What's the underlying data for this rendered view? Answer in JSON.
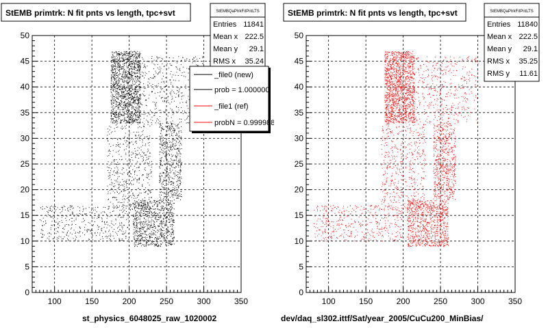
{
  "colors": {
    "left_points": "#000000",
    "right_points": "#ff0000",
    "frame": "#000000",
    "grid": "#000000"
  },
  "chart_data": [
    {
      "type": "scatter",
      "title": "StEMB primtrk: N fit pnts vs length, tpc+svt",
      "xlabel": "st_physics_6048025_raw_1020002",
      "ylabel": "",
      "xlim": [
        70,
        350
      ],
      "ylim": [
        0,
        50
      ],
      "xticks": [
        "100",
        "150",
        "200",
        "250",
        "300",
        "350"
      ],
      "yticks": [
        "0",
        "5",
        "10",
        "15",
        "20",
        "25",
        "30",
        "35",
        "40",
        "45",
        "50"
      ],
      "grid": true,
      "point_color": "#000000",
      "density_regions": [
        {
          "x": [
            175,
            215
          ],
          "y": [
            33,
            47
          ],
          "weight": 0.34
        },
        {
          "x": [
            205,
            260
          ],
          "y": [
            9,
            18
          ],
          "weight": 0.2
        },
        {
          "x": [
            240,
            270
          ],
          "y": [
            18,
            33
          ],
          "weight": 0.14
        },
        {
          "x": [
            80,
            200
          ],
          "y": [
            10,
            17
          ],
          "weight": 0.1
        },
        {
          "x": [
            170,
            230
          ],
          "y": [
            16,
            33
          ],
          "weight": 0.12
        },
        {
          "x": [
            215,
            300
          ],
          "y": [
            33,
            46
          ],
          "weight": 0.1
        }
      ],
      "stats": {
        "name": "StEMBQaPtrkFitPntLTS",
        "rows": [
          {
            "label": "Entries",
            "value": "11841"
          },
          {
            "label": "Mean x",
            "value": "222.5"
          },
          {
            "label": "Mean y",
            "value": "29.1"
          },
          {
            "label": "RMS x",
            "value": "35.24"
          }
        ]
      },
      "legend": {
        "position": "top-right",
        "entries": [
          {
            "label": "_file0 (new)",
            "color": "#000000"
          },
          {
            "label": "prob = 1.000000",
            "color": "#000000"
          },
          {
            "label": "_file1 (ref)",
            "color": "#ff0000"
          },
          {
            "label": "probN = 0.999988",
            "color": "#ff0000"
          }
        ]
      }
    },
    {
      "type": "scatter",
      "title": "StEMB primtrk: N fit pnts vs length, tpc+svt",
      "xlabel": "dev/daq_sl302.ittf/Sat/year_2005/CuCu200_MinBias/",
      "ylabel": "",
      "xlim": [
        70,
        350
      ],
      "ylim": [
        0,
        50
      ],
      "xticks": [
        "100",
        "150",
        "200",
        "250",
        "300",
        "350"
      ],
      "yticks": [
        "0",
        "5",
        "10",
        "15",
        "20",
        "25",
        "30",
        "35",
        "40",
        "45",
        "50"
      ],
      "grid": true,
      "point_color": "#ff0000",
      "density_regions": [
        {
          "x": [
            175,
            215
          ],
          "y": [
            33,
            47
          ],
          "weight": 0.34
        },
        {
          "x": [
            205,
            260
          ],
          "y": [
            9,
            18
          ],
          "weight": 0.2
        },
        {
          "x": [
            240,
            270
          ],
          "y": [
            18,
            33
          ],
          "weight": 0.14
        },
        {
          "x": [
            80,
            200
          ],
          "y": [
            10,
            17
          ],
          "weight": 0.1
        },
        {
          "x": [
            170,
            230
          ],
          "y": [
            16,
            33
          ],
          "weight": 0.12
        },
        {
          "x": [
            215,
            300
          ],
          "y": [
            33,
            46
          ],
          "weight": 0.1
        }
      ],
      "stats": {
        "name": "StEMBQaPtrkFitPntLTS",
        "rows": [
          {
            "label": "Entries",
            "value": "11840"
          },
          {
            "label": "Mean x",
            "value": "222.5"
          },
          {
            "label": "Mean y",
            "value": "29.1"
          },
          {
            "label": "RMS x",
            "value": "35.25"
          },
          {
            "label": "RMS y",
            "value": "11.61"
          }
        ]
      }
    }
  ]
}
